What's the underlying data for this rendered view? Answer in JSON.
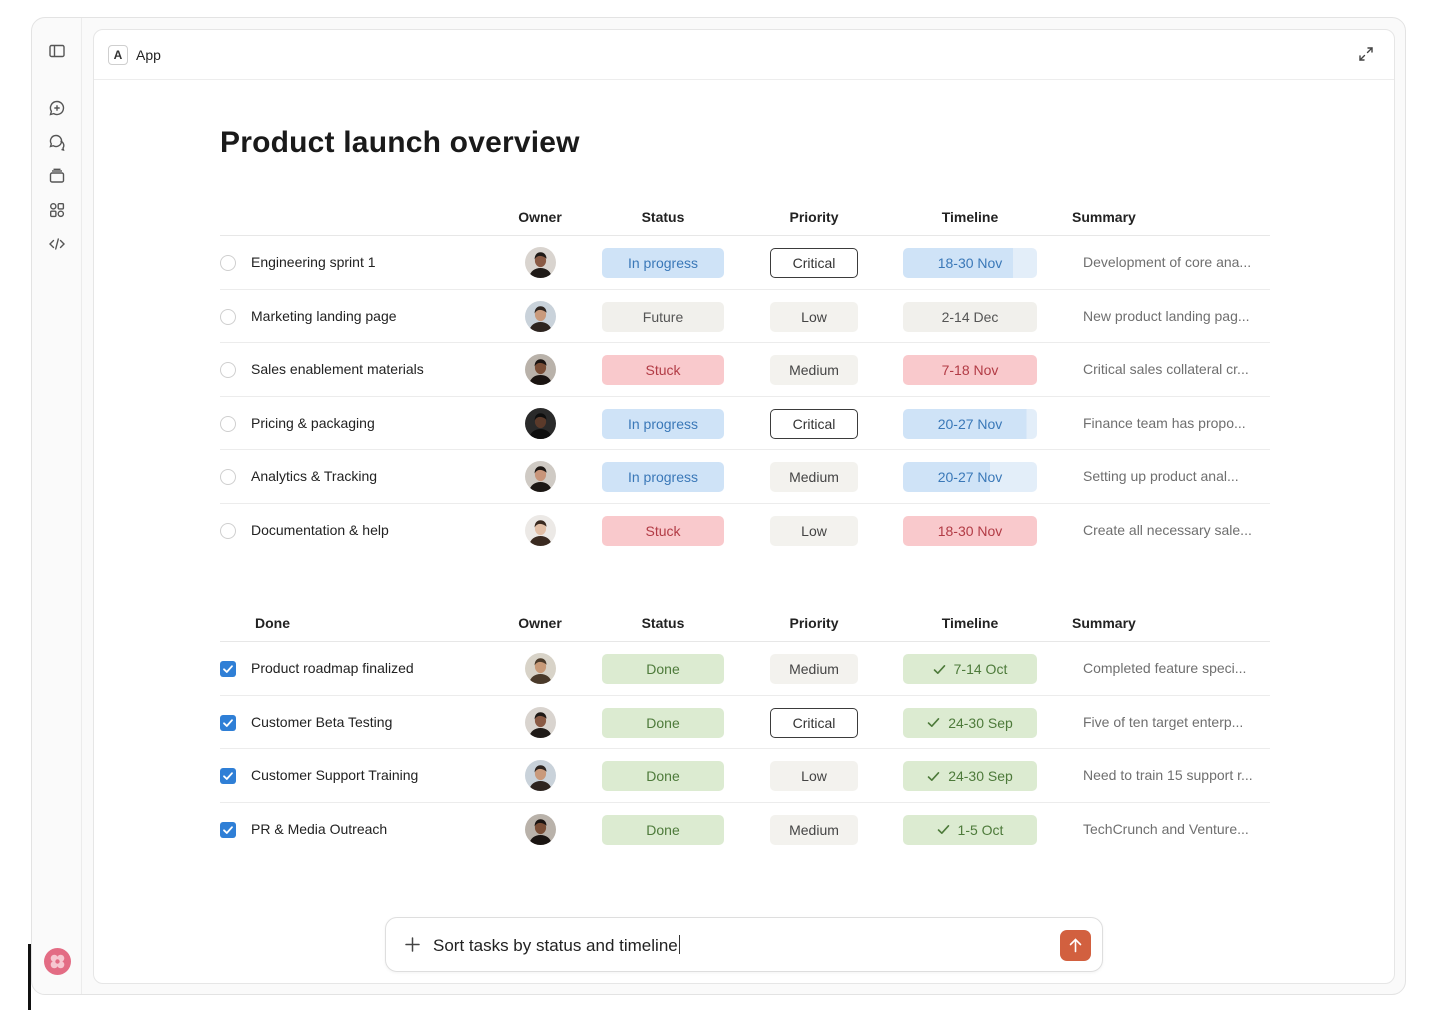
{
  "app": {
    "badge": "A",
    "name": "App"
  },
  "rail": {
    "icons": [
      "sidebar-toggle-icon",
      "new-chat-icon",
      "chats-icon",
      "projects-icon",
      "artifacts-icon",
      "code-icon"
    ],
    "brand_icon": "brand-logo-icon"
  },
  "page": {
    "title": "Product launch overview"
  },
  "active_table": {
    "headers": {
      "task": "",
      "owner": "Owner",
      "status": "Status",
      "priority": "Priority",
      "timeline": "Timeline",
      "summary": "Summary"
    },
    "rows": [
      {
        "task": "Engineering sprint 1",
        "owner": "avatar-1",
        "status": "In progress",
        "status_kind": "progress",
        "priority": "Critical",
        "priority_kind": "critical",
        "timeline": "18-30 Nov",
        "timeline_kind": "progress",
        "timeline_fill": 0.82,
        "summary": "Development of core ana..."
      },
      {
        "task": "Marketing landing page",
        "owner": "avatar-2",
        "status": "Future",
        "status_kind": "future",
        "priority": "Low",
        "priority_kind": "plain",
        "timeline": "2-14 Dec",
        "timeline_kind": "future",
        "timeline_fill": 1,
        "summary": "New product landing pag..."
      },
      {
        "task": "Sales enablement materials",
        "owner": "avatar-3",
        "status": "Stuck",
        "status_kind": "stuck",
        "priority": "Medium",
        "priority_kind": "plain",
        "timeline": "7-18 Nov",
        "timeline_kind": "stuck",
        "timeline_fill": 1,
        "summary": "Critical sales collateral cr..."
      },
      {
        "task": "Pricing & packaging",
        "owner": "avatar-4",
        "status": "In progress",
        "status_kind": "progress",
        "priority": "Critical",
        "priority_kind": "critical",
        "timeline": "20-27 Nov",
        "timeline_kind": "progress",
        "timeline_fill": 0.92,
        "summary": "Finance team has propo..."
      },
      {
        "task": "Analytics & Tracking",
        "owner": "avatar-5",
        "status": "In progress",
        "status_kind": "progress",
        "priority": "Medium",
        "priority_kind": "plain",
        "timeline": "20-27 Nov",
        "timeline_kind": "progress",
        "timeline_fill": 0.65,
        "summary": "Setting up product anal..."
      },
      {
        "task": "Documentation & help",
        "owner": "avatar-6",
        "status": "Stuck",
        "status_kind": "stuck",
        "priority": "Low",
        "priority_kind": "plain",
        "timeline": "18-30 Nov",
        "timeline_kind": "stuck",
        "timeline_fill": 1,
        "summary": "Create all necessary sale..."
      }
    ]
  },
  "done_table": {
    "headers": {
      "task": "Done",
      "owner": "Owner",
      "status": "Status",
      "priority": "Priority",
      "timeline": "Timeline",
      "summary": "Summary"
    },
    "rows": [
      {
        "task": "Product roadmap finalized",
        "owner": "avatar-7",
        "status": "Done",
        "status_kind": "done",
        "priority": "Medium",
        "priority_kind": "plain",
        "timeline": "7-14 Oct",
        "timeline_kind": "done",
        "summary": "Completed feature speci..."
      },
      {
        "task": "Customer Beta Testing",
        "owner": "avatar-1",
        "status": "Done",
        "status_kind": "done",
        "priority": "Critical",
        "priority_kind": "critical",
        "timeline": "24-30 Sep",
        "timeline_kind": "done",
        "summary": "Five of ten target enterp..."
      },
      {
        "task": "Customer Support Training",
        "owner": "avatar-2",
        "status": "Done",
        "status_kind": "done",
        "priority": "Low",
        "priority_kind": "plain",
        "timeline": "24-30 Sep",
        "timeline_kind": "done",
        "summary": "Need to train 15 support r..."
      },
      {
        "task": "PR & Media Outreach",
        "owner": "avatar-3",
        "status": "Done",
        "status_kind": "done",
        "priority": "Medium",
        "priority_kind": "plain",
        "timeline": "1-5 Oct",
        "timeline_kind": "done",
        "summary": "TechCrunch and Venture..."
      }
    ]
  },
  "composer": {
    "text": "Sort tasks by status and timeline",
    "send_icon": "arrow-up-icon",
    "add_icon": "plus-icon"
  },
  "colors": {
    "accent": "#d2603f",
    "progress": "#cfe3f7",
    "stuck": "#f9c9cc",
    "done": "#dcebd1",
    "checkbox": "#2f7fd6"
  }
}
